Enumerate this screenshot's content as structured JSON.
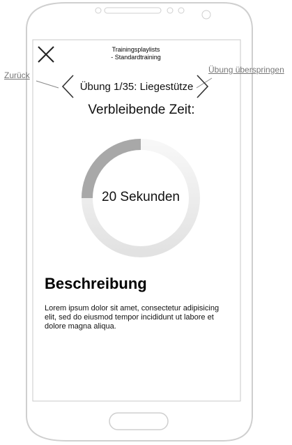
{
  "header": {
    "title_line1": "Trainingsplaylists",
    "title_line2": "- Standardtraining"
  },
  "navigation": {
    "exercise_label": "Übung 1/35: Liegestütze",
    "prev_annotation": "Zurück",
    "next_annotation": "Übung überspringen"
  },
  "timer": {
    "heading": "Verbleibende Zeit:",
    "value_text": "20 Sekunden",
    "progress_fraction": 0.25
  },
  "description": {
    "heading": "Beschreibung",
    "body": "Lorem ipsum dolor sit amet, consectetur adipisicing elit, sed do eiusmod tempor incididunt ut labore et dolore magna aliqua."
  },
  "icons": {
    "close": "close-icon",
    "prev": "chevron-left-icon",
    "next": "chevron-right-icon"
  },
  "colors": {
    "ring_elapsed": "#a8a8a8",
    "ring_remaining": "#efefef",
    "annotation": "#777777"
  }
}
